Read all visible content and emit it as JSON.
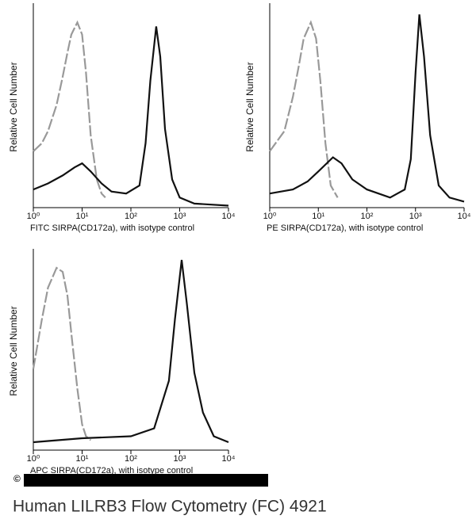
{
  "chart_data": [
    {
      "type": "line",
      "xlabel": "FITC SIRPA(CD172a), with isotype control",
      "ylabel": "Relative Cell Number",
      "xlog": true,
      "xlim": [
        1,
        10000
      ],
      "ylim": [
        0,
        100
      ],
      "xticks": [
        {
          "value": 1,
          "label": "10⁰"
        },
        {
          "value": 10,
          "label": "10¹"
        },
        {
          "value": 100,
          "label": "10²"
        },
        {
          "value": 1000,
          "label": "10³"
        },
        {
          "value": 10000,
          "label": "10⁴"
        }
      ],
      "series": [
        {
          "color": "#999999",
          "dashed": true,
          "x": [
            1,
            1.5,
            2,
            3,
            4,
            5,
            6,
            8,
            10,
            12,
            15,
            20,
            25,
            30
          ],
          "values": [
            28,
            32,
            38,
            51,
            65,
            77,
            86,
            92,
            86,
            67,
            36,
            14,
            7,
            5
          ]
        },
        {
          "color": "#111111",
          "dashed": false,
          "x": [
            1,
            2,
            4,
            7,
            10,
            15,
            25,
            40,
            80,
            150,
            200,
            250,
            330,
            400,
            500,
            700,
            1000,
            2000,
            10000
          ],
          "values": [
            9,
            12,
            16,
            20,
            22,
            18,
            12,
            8,
            7,
            11,
            32,
            63,
            90,
            75,
            39,
            14,
            5,
            2,
            1
          ]
        }
      ]
    },
    {
      "type": "line",
      "xlabel": "PE SIRPA(CD172a), with isotype control",
      "ylabel": "Relative Cell Number",
      "xlog": true,
      "xlim": [
        1,
        10000
      ],
      "ylim": [
        0,
        100
      ],
      "xticks": [
        {
          "value": 1,
          "label": "10⁰"
        },
        {
          "value": 10,
          "label": "10¹"
        },
        {
          "value": 100,
          "label": "10²"
        },
        {
          "value": 1000,
          "label": "10³"
        },
        {
          "value": 10000,
          "label": "10⁴"
        }
      ],
      "series": [
        {
          "color": "#999999",
          "dashed": true,
          "x": [
            1,
            2,
            3,
            4,
            5,
            7,
            9,
            11,
            14,
            18,
            25
          ],
          "values": [
            28,
            38,
            55,
            71,
            84,
            92,
            84,
            63,
            32,
            11,
            5
          ]
        },
        {
          "color": "#111111",
          "dashed": false,
          "x": [
            1,
            3,
            6,
            10,
            20,
            30,
            50,
            100,
            300,
            600,
            800,
            1000,
            1200,
            1500,
            2000,
            3000,
            5000,
            10000
          ],
          "values": [
            7,
            9,
            13,
            18,
            25,
            22,
            14,
            9,
            5,
            9,
            24,
            67,
            96,
            75,
            36,
            11,
            5,
            3
          ]
        }
      ]
    },
    {
      "type": "line",
      "xlabel": "APC SIRPA(CD172a), with isotype control",
      "ylabel": "Relative Cell Number",
      "xlog": true,
      "xlim": [
        1,
        10000
      ],
      "ylim": [
        0,
        100
      ],
      "xticks": [
        {
          "value": 1,
          "label": "10⁰"
        },
        {
          "value": 10,
          "label": "10¹"
        },
        {
          "value": 100,
          "label": "10²"
        },
        {
          "value": 1000,
          "label": "10³"
        },
        {
          "value": 10000,
          "label": "10⁴"
        }
      ],
      "series": [
        {
          "color": "#999999",
          "dashed": true,
          "x": [
            1,
            1.5,
            2,
            3,
            4,
            5,
            6,
            8,
            10,
            12,
            15
          ],
          "values": [
            41,
            66,
            82,
            92,
            90,
            78,
            59,
            31,
            13,
            7,
            5
          ]
        },
        {
          "color": "#111111",
          "dashed": false,
          "x": [
            1,
            10,
            100,
            300,
            600,
            800,
            1100,
            1400,
            2000,
            3000,
            5000,
            10000
          ],
          "values": [
            4,
            6,
            7,
            11,
            35,
            66,
            96,
            74,
            39,
            19,
            7,
            4
          ]
        }
      ]
    }
  ],
  "copyright": "©",
  "caption": "Human LILRB3 Flow Cytometry (FC) 4921"
}
